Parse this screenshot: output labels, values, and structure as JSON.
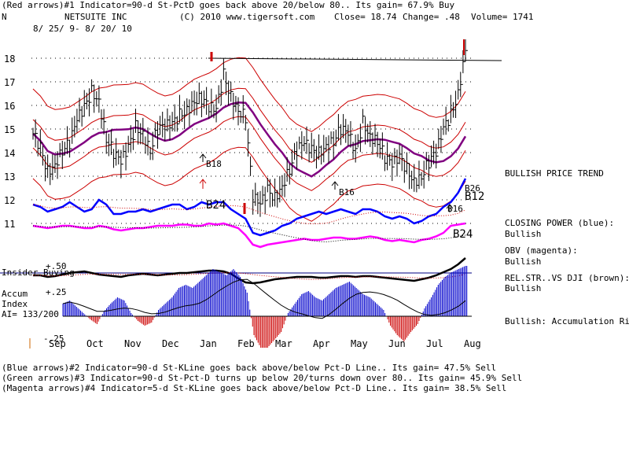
{
  "header": {
    "line1": "(Red arrows)#1 Indicator=90-d St-PctD goes back above 20/below 80.. Its gain= 67.9% Buy",
    "symbol": "N",
    "company": "NETSUITE INC",
    "copyright": "(C) 2010 www.tigersoft.com",
    "close": "Close=  18.74",
    "change": "Change= .48",
    "volume": "Volume= 1741",
    "date_range": "8/ 25/ 9-  8/ 20/ 10"
  },
  "right_panel": {
    "price_trend": "BULLISH PRICE TREND",
    "closing_power_label": "CLOSING POWER (blue):",
    "closing_power_value": "Bullish",
    "obv_label": "OBV (magenta):",
    "obv_value": "Bullish",
    "relstr_label": "REL.STR..VS DJI (brown):",
    "relstr_value": "Bullish",
    "accum_status": "Bullish: Accumulation Rising"
  },
  "indicator_panel": {
    "insider_label": "Insider Buying",
    "accum_label_1": "Accum",
    "accum_label_2": "Index",
    "ai_label": "AI= 133/200",
    "tick_plus50": "+.50",
    "tick_plus25": "+.25",
    "tick_minus25": "-.25"
  },
  "footer": {
    "line2": "(Blue arrows)#2 Indicator=90-d St-KLine goes back above/below Pct-D Line.. Its gain= 47.5% Sell",
    "line3": "(Green arrows)#3 Indicator=90-d St-Pct-D turns up below 20/turns down over 80.. Its gain= 45.9% Sell",
    "line4": "(Magenta arrows)#4 Indicator=5-d St-KLine goes back above/below Pct-D Line.. Its gain= 38.5% Sell"
  },
  "annotations": {
    "b18": "B18",
    "b24_main": "B24",
    "b16_a": "B16",
    "b16_b": "B16",
    "b26": "B26",
    "b12": "B12",
    "b24_right": "B24"
  },
  "colors": {
    "price": "#000000",
    "bands": "#cc0000",
    "ma": "#800080",
    "closing_power": "#0000ff",
    "obv": "#ff00ff",
    "relstr": "#000000",
    "accum_pos": "#0000cc",
    "accum_neg": "#cc0000",
    "insider_line": "#000080"
  },
  "chart_data": {
    "type": "line",
    "ylim": [
      10.5,
      18.8
    ],
    "y_ticks": [
      11,
      12,
      13,
      14,
      15,
      16,
      17,
      18
    ],
    "x_ticks": [
      "Sep",
      "Oct",
      "Nov",
      "Dec",
      "Jan",
      "Feb",
      "Mar",
      "Apr",
      "May",
      "Jun",
      "Jul",
      "Aug"
    ],
    "series": [
      {
        "name": "",
        "values": [
          14.8,
          14.2,
          13.2,
          13.5,
          14.1,
          14.4,
          15.4,
          15.9,
          16.6,
          16.2,
          14.6,
          14.0,
          13.6,
          14.2,
          15.1,
          14.8,
          14.1,
          15.0,
          15.1,
          15.2,
          15.6,
          15.8,
          16.2,
          16.3,
          15.9,
          15.8,
          17.3,
          16.4,
          15.8,
          15.5,
          12.1,
          11.8,
          12.4,
          12.1,
          12.6,
          13.3,
          14.1,
          14.4,
          14.1,
          14.0,
          14.3,
          14.5,
          15.0,
          14.8,
          14.0,
          15.3,
          14.7,
          14.5,
          13.8,
          13.5,
          13.8,
          13.3,
          12.8,
          13.0,
          13.6,
          14.0,
          15.0,
          15.6,
          16.5,
          18.4
        ]
      }
    ]
  }
}
